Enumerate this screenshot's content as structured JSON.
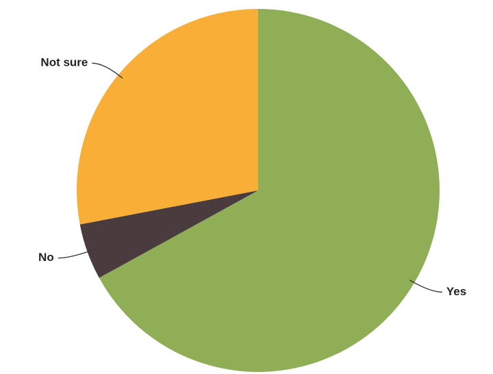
{
  "chart_data": {
    "type": "pie",
    "categories": [
      "Yes",
      "No",
      "Not sure"
    ],
    "values": [
      67,
      5,
      28
    ],
    "colors": [
      "#8fae55",
      "#4a3b3f",
      "#f9ae38"
    ],
    "start_angle": 0,
    "direction": "clockwise"
  }
}
